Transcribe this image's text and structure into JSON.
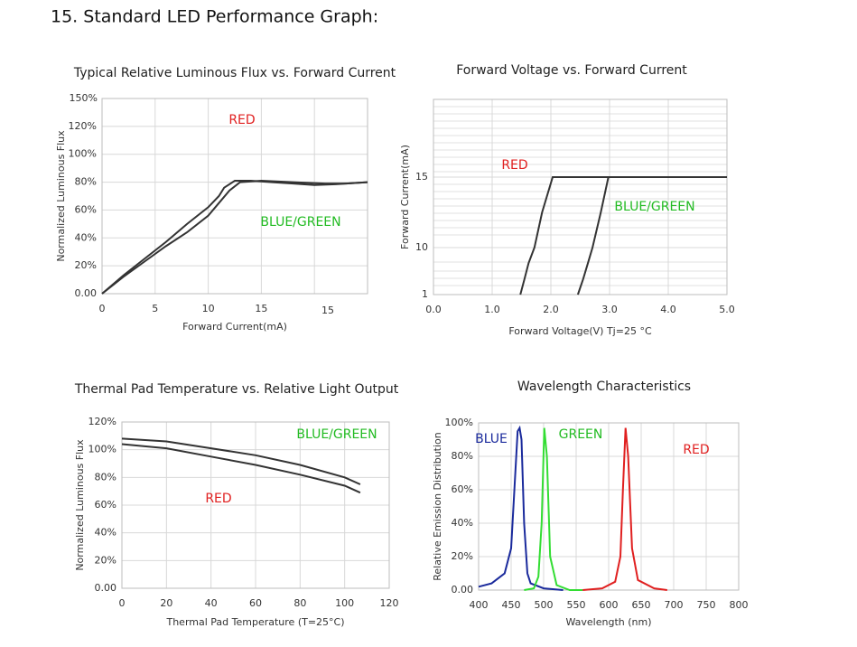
{
  "heading": "15. Standard LED Performance Graph:",
  "chart_data": [
    {
      "type": "line",
      "title": "Typical Relative Luminous Flux vs. Forward Current",
      "xlabel": "Forward Current(mA)",
      "ylabel": "Normalized Luminous Flux",
      "xlim": [
        0,
        25
      ],
      "xticks": [
        0,
        5,
        10,
        15
      ],
      "xgrid": [
        5,
        10,
        15,
        20
      ],
      "ylim": [
        0,
        140
      ],
      "yticks": [
        {
          "value": 0,
          "label": "0.00"
        },
        {
          "value": 20,
          "label": "20%"
        },
        {
          "value": 40,
          "label": "40%"
        },
        {
          "value": 60,
          "label": "60%"
        },
        {
          "value": 80,
          "label": "80%"
        },
        {
          "value": 100,
          "label": "100%"
        },
        {
          "value": 120,
          "label": "120%"
        }
      ],
      "annotations": [
        {
          "text": "150%"
        },
        {
          "text": "15"
        }
      ],
      "grid": true,
      "series": [
        {
          "name": "RED",
          "color": "#333333",
          "label_color": "#e02020",
          "x": [
            0,
            2,
            4,
            6,
            8,
            10,
            11,
            11.5,
            12.5,
            14,
            16,
            18,
            20,
            22,
            25
          ],
          "values": [
            0,
            13,
            25,
            37,
            50,
            62,
            70,
            76,
            81,
            81,
            80,
            79,
            78,
            78.5,
            80
          ]
        },
        {
          "name": "BLUE/GREEN",
          "color": "#333333",
          "label_color": "#22bb22",
          "x": [
            0,
            2,
            4,
            6,
            8,
            10,
            11,
            12,
            13,
            15,
            18,
            21,
            23,
            25
          ],
          "values": [
            0,
            12,
            23,
            34,
            44,
            56,
            65,
            74,
            80,
            81,
            80,
            79,
            79,
            80
          ]
        }
      ]
    },
    {
      "type": "line",
      "title": "Forward Voltage vs. Forward Current",
      "xlabel": "Forward Voltage(V) Tj=25 °C",
      "ylabel": "Forward Current(mA)",
      "xlim": [
        0,
        5
      ],
      "xticks": [
        {
          "value": 0,
          "label": "0.0"
        },
        {
          "value": 1,
          "label": "1.0"
        },
        {
          "value": 2,
          "label": "2.0"
        },
        {
          "value": 3,
          "label": "3.0"
        },
        {
          "value": 4,
          "label": "4.0"
        },
        {
          "value": 5,
          "label": "5.0"
        }
      ],
      "ylim": [
        1,
        20
      ],
      "yticks": [
        1,
        10,
        15
      ],
      "yscale": "piecewise",
      "grid": true,
      "series": [
        {
          "name": "RED",
          "color": "#333333",
          "label_color": "#e02020",
          "x": [
            1.48,
            1.55,
            1.62,
            1.72,
            1.85,
            2.03,
            3,
            4,
            5
          ],
          "values": [
            1,
            4,
            7,
            10,
            12.5,
            15,
            15,
            15,
            15
          ]
        },
        {
          "name": "BLUE/GREEN",
          "color": "#333333",
          "label_color": "#22bb22",
          "x": [
            2.46,
            2.55,
            2.63,
            2.71,
            2.85,
            2.98,
            4,
            5
          ],
          "values": [
            1,
            4,
            7,
            10,
            12.5,
            15,
            15,
            15
          ]
        }
      ]
    },
    {
      "type": "line",
      "title": "Thermal Pad Temperature vs. Relative Light Output",
      "xlabel": "Thermal Pad Temperature (T=25°C)",
      "ylabel": "Normalized Luminous Flux",
      "xlim": [
        0,
        120
      ],
      "xticks": [
        0,
        20,
        40,
        60,
        80,
        100,
        120
      ],
      "ylim": [
        0,
        120
      ],
      "yticks": [
        {
          "value": 0,
          "label": "0.00"
        },
        {
          "value": 20,
          "label": "20%"
        },
        {
          "value": 40,
          "label": "40%"
        },
        {
          "value": 60,
          "label": "60%"
        },
        {
          "value": 80,
          "label": "80%"
        },
        {
          "value": 100,
          "label": "100%"
        },
        {
          "value": 120,
          "label": "120%"
        }
      ],
      "grid": true,
      "series": [
        {
          "name": "BLUE/GREEN",
          "color": "#333333",
          "label_color": "#22bb22",
          "x": [
            0,
            20,
            40,
            60,
            80,
            100,
            107
          ],
          "values": [
            108,
            106,
            101,
            96,
            89,
            80,
            75
          ]
        },
        {
          "name": "RED",
          "color": "#333333",
          "label_color": "#e02020",
          "x": [
            0,
            20,
            40,
            60,
            80,
            100,
            107
          ],
          "values": [
            104,
            101,
            95,
            89,
            82,
            74,
            69
          ]
        }
      ]
    },
    {
      "type": "line",
      "title": "Wavelength Characteristics",
      "xlabel": "Wavelength (nm)",
      "ylabel": "Relative Emission Distribution",
      "xlim": [
        400,
        800
      ],
      "xticks": [
        400,
        450,
        500,
        550,
        600,
        650,
        700,
        750,
        800
      ],
      "ylim": [
        0,
        100
      ],
      "yticks": [
        {
          "value": 0,
          "label": "0.00"
        },
        {
          "value": 20,
          "label": "20%"
        },
        {
          "value": 40,
          "label": "40%"
        },
        {
          "value": 60,
          "label": "60%"
        },
        {
          "value": 80,
          "label": "80%"
        },
        {
          "value": 100,
          "label": "100%"
        }
      ],
      "grid": true,
      "series": [
        {
          "name": "BLUE",
          "color": "#1a2a9c",
          "label_color": "#1a2a9c",
          "x": [
            400,
            420,
            440,
            450,
            455,
            460,
            463,
            466,
            470,
            475,
            480,
            500,
            530
          ],
          "values": [
            2,
            4,
            10,
            25,
            60,
            95,
            97,
            90,
            40,
            10,
            4,
            1,
            0
          ]
        },
        {
          "name": "GREEN",
          "color": "#33dd33",
          "label_color": "#22bb22",
          "x": [
            470,
            485,
            492,
            497,
            501,
            505,
            510,
            520,
            540,
            560
          ],
          "values": [
            0,
            1,
            8,
            40,
            97,
            80,
            20,
            3,
            0,
            0
          ]
        },
        {
          "name": "RED",
          "color": "#e02020",
          "label_color": "#e02020",
          "x": [
            560,
            590,
            610,
            618,
            622,
            626,
            630,
            636,
            645,
            670,
            690
          ],
          "values": [
            0,
            1,
            5,
            20,
            60,
            97,
            80,
            25,
            6,
            1,
            0
          ]
        }
      ]
    }
  ]
}
